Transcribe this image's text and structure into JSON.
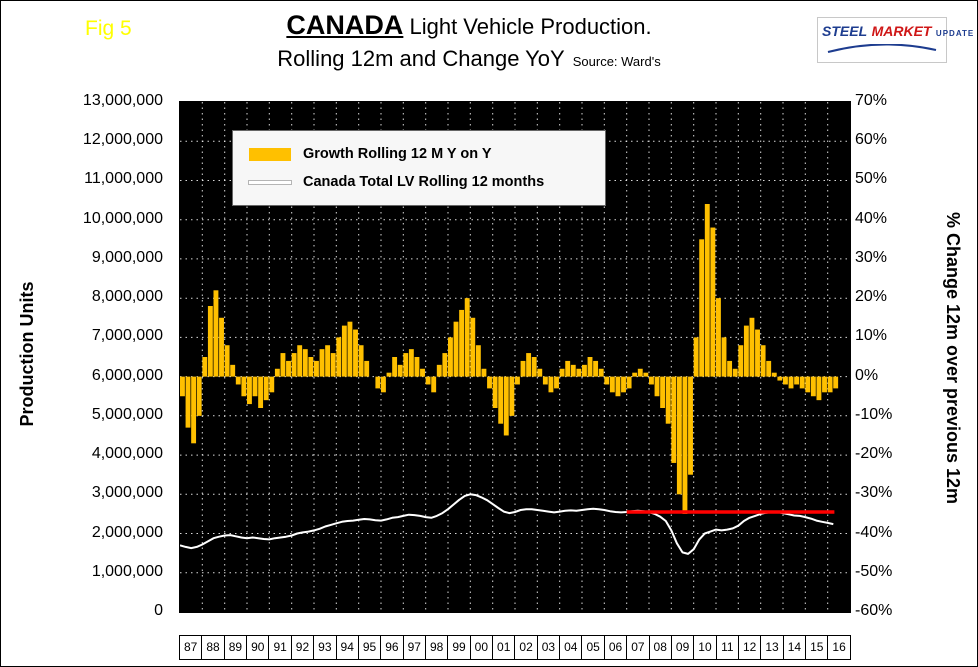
{
  "figure_label": "Fig 5",
  "title": {
    "main": "CANADA",
    "main_rest": " Light Vehicle Production.",
    "line2": "Rolling 12m and Change YoY",
    "source": "Source: Ward's"
  },
  "logo": {
    "word1": "STEEL",
    "word2": "MARKET",
    "word3": "UPDATE"
  },
  "left_axis_title": "Production Units",
  "right_axis_title": "% Change 12m over previous 12m",
  "left_axis_ticks": [
    "13,000,000",
    "12,000,000",
    "11,000,000",
    "10,000,000",
    "9,000,000",
    "8,000,000",
    "7,000,000",
    "6,000,000",
    "5,000,000",
    "4,000,000",
    "3,000,000",
    "2,000,000",
    "1,000,000",
    "0"
  ],
  "right_axis_ticks": [
    "70%",
    "60%",
    "50%",
    "40%",
    "30%",
    "20%",
    "10%",
    "0%",
    "-10%",
    "-20%",
    "-30%",
    "-40%",
    "-50%",
    "-60%"
  ],
  "legend": [
    {
      "label": "Growth Rolling 12 M Y on Y",
      "color": "#FFC000",
      "swatch": "bar"
    },
    {
      "label": "Canada Total LV Rolling 12 months",
      "color": "#FFFFFF",
      "swatch": "line"
    }
  ],
  "chart_data": {
    "type": "combo",
    "title": "CANADA Light Vehicle Production. Rolling 12m and Change YoY",
    "source": "Ward's",
    "background": "#000000",
    "grid": "white dashed, every year vertical, every 1,000,000 units horizontal",
    "x_range": [
      1987,
      2017
    ],
    "x_step_years": 0.25,
    "x_tick_labels": [
      "87",
      "88",
      "89",
      "90",
      "91",
      "92",
      "93",
      "94",
      "95",
      "96",
      "97",
      "98",
      "99",
      "00",
      "01",
      "02",
      "03",
      "04",
      "05",
      "06",
      "07",
      "08",
      "09",
      "10",
      "11",
      "12",
      "13",
      "14",
      "15",
      "16"
    ],
    "left_axis": {
      "label": "Production Units",
      "lim": [
        0,
        13000000
      ],
      "tick_step": 1000000
    },
    "right_axis": {
      "label": "% Change 12m over previous 12m",
      "lim": [
        -60,
        70
      ],
      "tick_step": 10
    },
    "series": [
      {
        "name": "Growth Rolling 12 M Y on Y",
        "type": "bar",
        "axis": "right",
        "unit": "percent YoY",
        "color": "#FFC000",
        "values": [
          -5,
          -13,
          -17,
          -10,
          5,
          18,
          22,
          15,
          8,
          3,
          -2,
          -5,
          -7,
          -5,
          -8,
          -6,
          -4,
          2,
          6,
          4,
          6,
          8,
          7,
          5,
          4,
          7,
          8,
          6,
          10,
          13,
          14,
          12,
          8,
          4,
          0,
          -3,
          -4,
          1,
          5,
          3,
          6,
          7,
          5,
          2,
          -2,
          -4,
          3,
          6,
          10,
          14,
          17,
          20,
          15,
          8,
          2,
          -3,
          -8,
          -12,
          -15,
          -10,
          -2,
          4,
          6,
          5,
          2,
          -2,
          -4,
          -3,
          2,
          4,
          3,
          2,
          3,
          5,
          4,
          2,
          -2,
          -4,
          -5,
          -4,
          -3,
          1,
          2,
          1,
          -2,
          -5,
          -8,
          -12,
          -22,
          -30,
          -35,
          -25,
          10,
          35,
          44,
          38,
          20,
          10,
          4,
          2,
          8,
          13,
          15,
          12,
          8,
          4,
          1,
          -1,
          -2,
          -3,
          -2,
          -3,
          -4,
          -5,
          -6,
          -4,
          -4,
          -3
        ]
      },
      {
        "name": "Canada Total LV Rolling 12 months",
        "type": "line",
        "axis": "left",
        "unit": "million units",
        "color": "#FFFFFF",
        "values_millions": [
          1.7,
          1.66,
          1.63,
          1.66,
          1.72,
          1.8,
          1.88,
          1.92,
          1.95,
          1.96,
          1.93,
          1.9,
          1.88,
          1.9,
          1.88,
          1.86,
          1.85,
          1.88,
          1.9,
          1.92,
          1.95,
          2.0,
          2.03,
          2.05,
          2.08,
          2.12,
          2.18,
          2.22,
          2.26,
          2.3,
          2.32,
          2.33,
          2.35,
          2.37,
          2.36,
          2.34,
          2.33,
          2.36,
          2.4,
          2.42,
          2.45,
          2.48,
          2.47,
          2.45,
          2.42,
          2.4,
          2.45,
          2.52,
          2.62,
          2.74,
          2.86,
          2.96,
          3.0,
          2.98,
          2.92,
          2.85,
          2.75,
          2.65,
          2.56,
          2.52,
          2.55,
          2.6,
          2.62,
          2.62,
          2.6,
          2.58,
          2.56,
          2.54,
          2.56,
          2.58,
          2.59,
          2.58,
          2.6,
          2.62,
          2.63,
          2.62,
          2.6,
          2.57,
          2.55,
          2.54,
          2.55,
          2.57,
          2.58,
          2.57,
          2.55,
          2.5,
          2.43,
          2.32,
          2.08,
          1.75,
          1.52,
          1.48,
          1.6,
          1.85,
          2.0,
          2.05,
          2.1,
          2.08,
          2.1,
          2.13,
          2.2,
          2.32,
          2.4,
          2.45,
          2.5,
          2.53,
          2.55,
          2.55,
          2.52,
          2.49,
          2.46,
          2.45,
          2.42,
          2.38,
          2.33,
          2.3,
          2.27,
          2.24
        ]
      },
      {
        "name": "reference-level-line",
        "type": "hline",
        "axis": "left",
        "value": 2550000,
        "x_span": [
          2007,
          2016.3
        ],
        "color": "#FF0000"
      }
    ]
  }
}
